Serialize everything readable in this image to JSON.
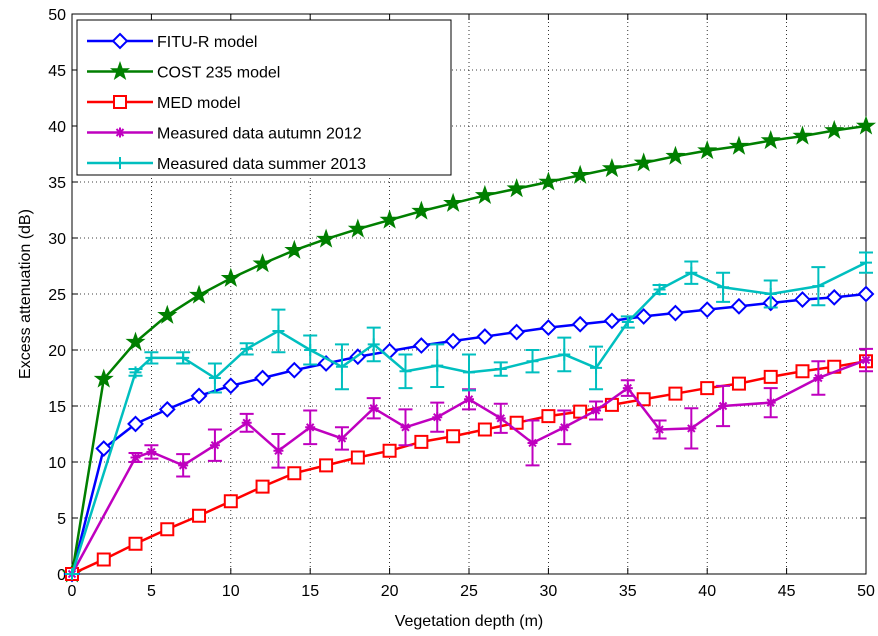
{
  "chart_data": {
    "type": "line",
    "xlabel": "Vegetation depth (m)",
    "ylabel": "Excess attenuation (dB)",
    "xlim": [
      0,
      50
    ],
    "ylim": [
      0,
      50
    ],
    "xticks": [
      0,
      5,
      10,
      15,
      20,
      25,
      30,
      35,
      40,
      45,
      50
    ],
    "yticks": [
      0,
      5,
      10,
      15,
      20,
      25,
      30,
      35,
      40,
      45,
      50
    ],
    "grid": true,
    "legend": "upper left",
    "series": [
      {
        "name": "FITU-R model",
        "color": "#0000ff",
        "marker": "diamond",
        "x": [
          0,
          2,
          4,
          6,
          8,
          10,
          12,
          14,
          16,
          18,
          20,
          22,
          24,
          26,
          28,
          30,
          32,
          34,
          36,
          38,
          40,
          42,
          44,
          46,
          48,
          50
        ],
        "values": [
          0,
          11.2,
          13.4,
          14.7,
          15.9,
          16.8,
          17.5,
          18.2,
          18.8,
          19.4,
          19.9,
          20.4,
          20.8,
          21.2,
          21.6,
          22.0,
          22.3,
          22.6,
          23.0,
          23.3,
          23.6,
          23.9,
          24.2,
          24.5,
          24.7,
          25.0
        ]
      },
      {
        "name": "COST 235 model",
        "color": "#007f00",
        "marker": "star",
        "x": [
          0,
          2,
          4,
          6,
          8,
          10,
          12,
          14,
          16,
          18,
          20,
          22,
          24,
          26,
          28,
          30,
          32,
          34,
          36,
          38,
          40,
          42,
          44,
          46,
          48,
          50
        ],
        "values": [
          0,
          17.4,
          20.7,
          23.1,
          24.9,
          26.4,
          27.7,
          28.9,
          29.9,
          30.8,
          31.6,
          32.4,
          33.1,
          33.8,
          34.4,
          35.0,
          35.6,
          36.2,
          36.7,
          37.3,
          37.8,
          38.2,
          38.7,
          39.1,
          39.6,
          40.0
        ]
      },
      {
        "name": "MED model",
        "color": "#ff0000",
        "marker": "square",
        "x": [
          0,
          2,
          4,
          6,
          8,
          10,
          12,
          14,
          16,
          18,
          20,
          22,
          24,
          26,
          28,
          30,
          32,
          34,
          36,
          38,
          40,
          42,
          44,
          46,
          48,
          50
        ],
        "values": [
          0,
          1.3,
          2.7,
          4.0,
          5.2,
          6.5,
          7.8,
          9.0,
          9.7,
          10.4,
          11.0,
          11.8,
          12.3,
          12.9,
          13.5,
          14.1,
          14.5,
          15.1,
          15.6,
          16.1,
          16.6,
          17.0,
          17.6,
          18.1,
          18.5,
          19.0
        ]
      },
      {
        "name": "Measured data autumn 2012",
        "color": "#bf00bf",
        "marker": "asterisk",
        "x": [
          0,
          4,
          5,
          7,
          9,
          11,
          13,
          15,
          17,
          19,
          21,
          23,
          25,
          27,
          29,
          31,
          33,
          35,
          37,
          39,
          41,
          44,
          47,
          50
        ],
        "values": [
          0,
          10.4,
          10.9,
          9.7,
          11.5,
          13.5,
          11.0,
          13.1,
          12.1,
          14.8,
          13.1,
          14.0,
          15.6,
          13.9,
          11.7,
          13.1,
          14.6,
          16.6,
          12.9,
          13.0,
          15.0,
          15.3,
          17.5,
          19.1
        ],
        "errors": [
          0,
          0.4,
          0.6,
          1.0,
          1.4,
          0.8,
          1.5,
          1.5,
          1.0,
          0.9,
          1.6,
          1.3,
          0.9,
          1.3,
          2.0,
          1.5,
          0.8,
          0.7,
          0.8,
          1.8,
          1.8,
          1.3,
          1.5,
          1.0
        ]
      },
      {
        "name": "Measured data summer 2013",
        "color": "#00bfbf",
        "marker": "plus",
        "x": [
          0,
          4,
          5,
          7,
          9,
          11,
          13,
          15,
          17,
          19,
          21,
          23,
          25,
          27,
          29,
          31,
          33,
          35,
          37,
          39,
          41,
          44,
          47,
          50
        ],
        "values": [
          0,
          18.0,
          19.3,
          19.3,
          17.5,
          20.1,
          21.7,
          20.0,
          18.5,
          20.5,
          18.1,
          18.6,
          18.0,
          18.3,
          19.0,
          19.6,
          18.4,
          22.5,
          25.4,
          26.9,
          25.6,
          25.0,
          25.7,
          27.8
        ],
        "errors": [
          0,
          0.3,
          0.5,
          0.5,
          1.3,
          0.5,
          1.9,
          1.3,
          2.0,
          1.5,
          1.5,
          1.9,
          1.6,
          0.6,
          1.0,
          1.5,
          1.9,
          0.5,
          0.4,
          1.0,
          1.3,
          1.2,
          1.7,
          0.9
        ]
      }
    ]
  }
}
